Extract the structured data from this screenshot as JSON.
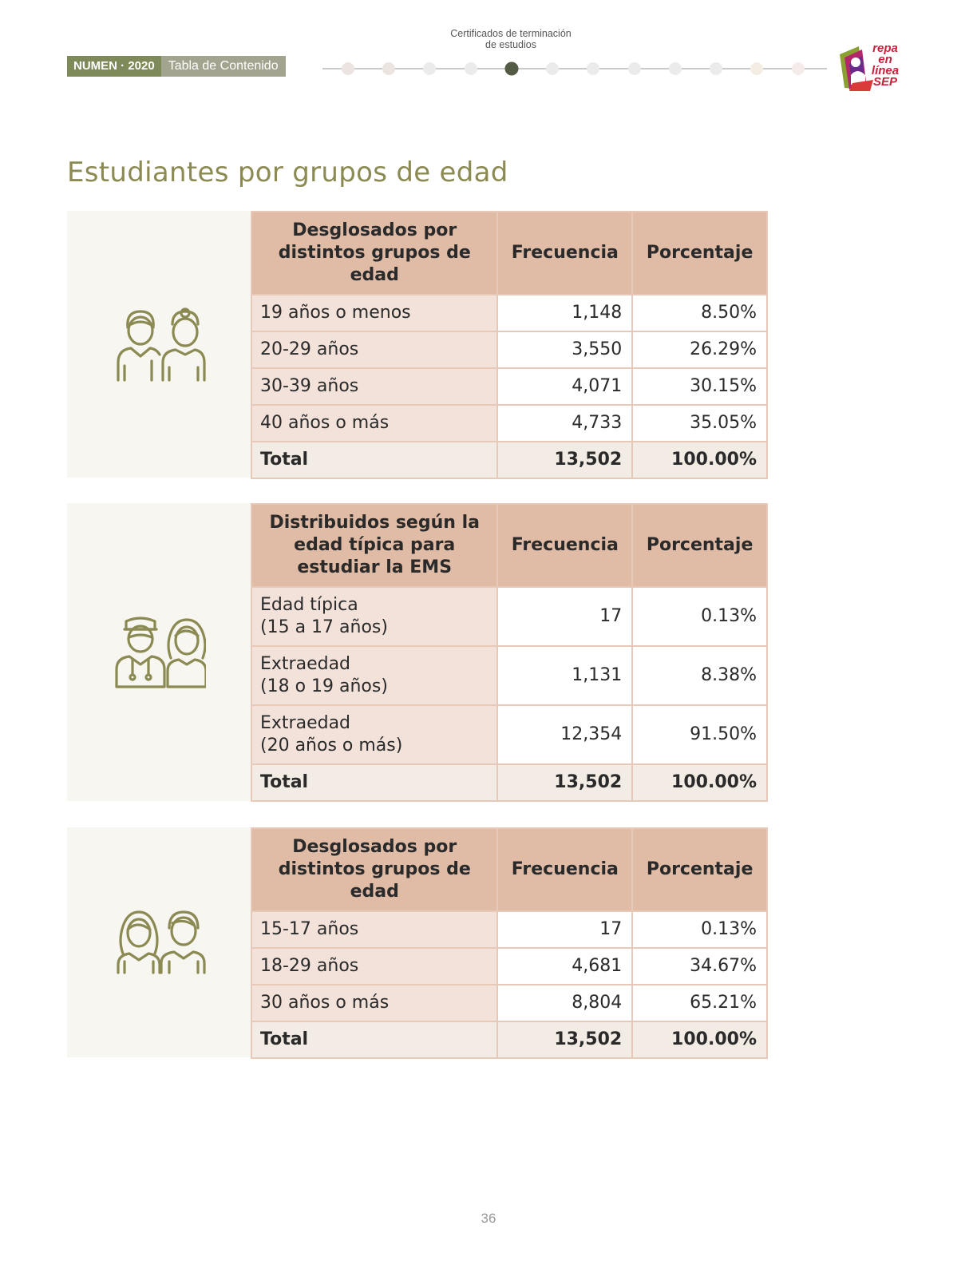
{
  "header": {
    "section_line1": "Certificados de terminación",
    "section_line2": "de estudios",
    "tag_numen": "NUMEN · 2020",
    "tag_toc": "Tabla de Contenido",
    "logo_text_1": "repa en",
    "logo_text_2": "línea",
    "logo_text_3": "SEP",
    "progress_active_index": 4,
    "progress_total": 12
  },
  "page_title": "Estudiantes por grupos de edad",
  "tables": [
    {
      "icon": "young-people-icon",
      "headers": [
        "Desglosados por distintos grupos de edad",
        "Frecuencia",
        "Porcentaje"
      ],
      "rows": [
        {
          "label": "19 años o menos",
          "freq": "1,148",
          "pct": "8.50%"
        },
        {
          "label": "20-29 años",
          "freq": "3,550",
          "pct": "26.29%"
        },
        {
          "label": "30-39 años",
          "freq": "4,071",
          "pct": "30.15%"
        },
        {
          "label": "40 años o más",
          "freq": "4,733",
          "pct": "35.05%"
        }
      ],
      "total": {
        "label": "Total",
        "freq": "13,502",
        "pct": "100.00%"
      }
    },
    {
      "icon": "students-icon",
      "headers": [
        "Distribuidos según la edad típica para estudiar la EMS",
        "Frecuencia",
        "Porcentaje"
      ],
      "rows": [
        {
          "label_1": "Edad típica",
          "label_2": "(15 a 17 años)",
          "freq": "17",
          "pct": "0.13%"
        },
        {
          "label_1": "Extraedad",
          "label_2": "(18 o 19 años)",
          "freq": "1,131",
          "pct": "8.38%"
        },
        {
          "label_1": "Extraedad",
          "label_2": "(20 años o más)",
          "freq": "12,354",
          "pct": "91.50%"
        }
      ],
      "total": {
        "label": "Total",
        "freq": "13,502",
        "pct": "100.00%"
      }
    },
    {
      "icon": "people-pair-icon",
      "headers": [
        "Desglosados por distintos grupos de edad",
        "Frecuencia",
        "Porcentaje"
      ],
      "rows": [
        {
          "label": "15-17 años",
          "freq": "17",
          "pct": "0.13%"
        },
        {
          "label": "18-29 años",
          "freq": "4,681",
          "pct": "34.67%"
        },
        {
          "label": "30 años o más",
          "freq": "8,804",
          "pct": "65.21%"
        }
      ],
      "total": {
        "label": "Total",
        "freq": "13,502",
        "pct": "100.00%"
      }
    }
  ],
  "page_number": "36",
  "colors": {
    "accent_olive": "#8b8a52",
    "header_cell": "#e0bba6",
    "label_cell": "#f2e2da",
    "total_row": "#f2ece4"
  }
}
